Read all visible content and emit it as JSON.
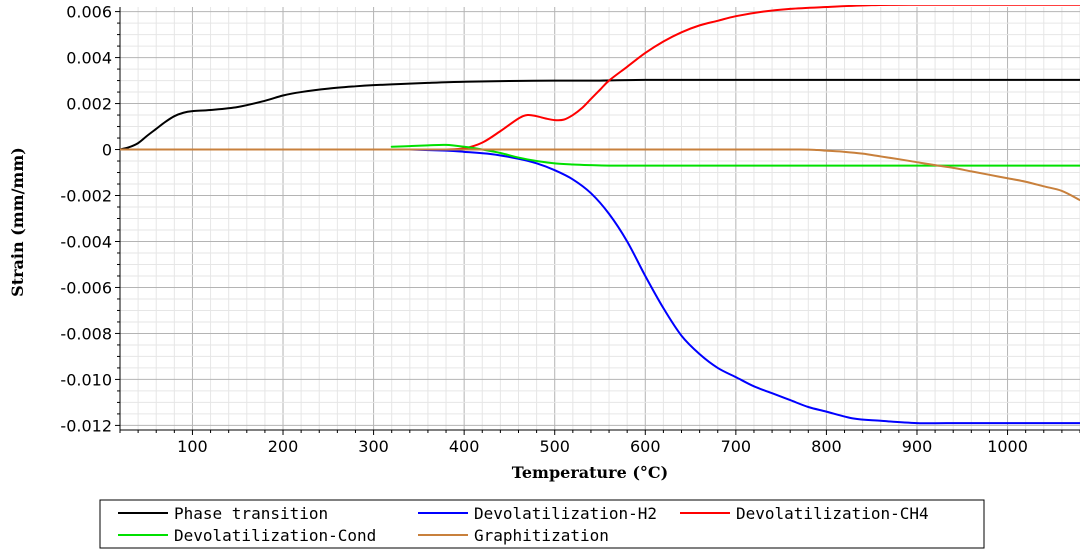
{
  "chart_data": {
    "type": "line",
    "title": "",
    "xlabel": "Temperature (°C)",
    "ylabel": "Strain (mm/mm)",
    "xlim": [
      20,
      1080
    ],
    "ylim": [
      -0.0122,
      0.0062
    ],
    "xticks": [
      100,
      200,
      300,
      400,
      500,
      600,
      700,
      800,
      900,
      1000
    ],
    "xtick_labels": [
      "100",
      "200",
      "300",
      "400",
      "500",
      "600",
      "700",
      "800",
      "900",
      "1000"
    ],
    "yticks": [
      0.006,
      0.004,
      0.002,
      0,
      -0.002,
      -0.004,
      -0.006,
      -0.008,
      -0.01,
      -0.012
    ],
    "ytick_labels": [
      "0.006",
      "0.004",
      "0.002",
      "0",
      "-0.002",
      "-0.004",
      "-0.006",
      "-0.008",
      "-0.010",
      "-0.012"
    ],
    "grid": true,
    "legend_position": "bottom",
    "series": [
      {
        "name": "Phase transition",
        "color": "#000000",
        "x": [
          20,
          30,
          40,
          50,
          60,
          70,
          80,
          90,
          100,
          120,
          150,
          180,
          200,
          220,
          250,
          280,
          300,
          330,
          360,
          400,
          450,
          500,
          550,
          600,
          700,
          800,
          900,
          1000,
          1080
        ],
        "y": [
          0.0,
          0.0001,
          0.00028,
          0.0006,
          0.0009,
          0.0012,
          0.00145,
          0.0016,
          0.00167,
          0.00172,
          0.00185,
          0.00212,
          0.00235,
          0.0025,
          0.00265,
          0.00275,
          0.0028,
          0.00285,
          0.0029,
          0.00295,
          0.00298,
          0.003,
          0.003,
          0.00303,
          0.00303,
          0.00303,
          0.00303,
          0.00303,
          0.00303
        ]
      },
      {
        "name": "Devolatilization-H2",
        "color": "#0000ff",
        "x": [
          340,
          380,
          400,
          430,
          460,
          480,
          500,
          520,
          540,
          560,
          580,
          600,
          620,
          640,
          660,
          680,
          700,
          720,
          740,
          760,
          780,
          800,
          830,
          860,
          900,
          950,
          1000,
          1080
        ],
        "y": [
          0.0,
          -5e-05,
          -0.0001,
          -0.0002,
          -0.0004,
          -0.0006,
          -0.0009,
          -0.0013,
          -0.0019,
          -0.0028,
          -0.004,
          -0.0055,
          -0.0069,
          -0.0081,
          -0.0089,
          -0.0095,
          -0.0099,
          -0.0103,
          -0.0106,
          -0.0109,
          -0.0112,
          -0.0114,
          -0.0117,
          -0.0118,
          -0.0119,
          -0.0119,
          -0.0119,
          -0.0119
        ]
      },
      {
        "name": "Devolatilization-CH4",
        "color": "#ff0000",
        "x": [
          380,
          400,
          420,
          440,
          460,
          470,
          480,
          490,
          500,
          510,
          520,
          530,
          540,
          550,
          560,
          580,
          600,
          620,
          640,
          660,
          680,
          700,
          730,
          760,
          800,
          850,
          900,
          950,
          1000,
          1080
        ],
        "y": [
          0.0,
          5e-05,
          0.0003,
          0.0008,
          0.00135,
          0.0015,
          0.00145,
          0.00135,
          0.00128,
          0.0013,
          0.0015,
          0.0018,
          0.0022,
          0.0026,
          0.003,
          0.0036,
          0.0042,
          0.0047,
          0.0051,
          0.0054,
          0.0056,
          0.0058,
          0.006,
          0.00612,
          0.0062,
          0.00628,
          0.0063,
          0.0063,
          0.0063,
          0.0063
        ]
      },
      {
        "name": "Devolatilization-Cond",
        "color": "#00e000",
        "x": [
          320,
          340,
          360,
          380,
          400,
          420,
          440,
          460,
          480,
          500,
          520,
          540,
          560,
          600,
          700,
          800,
          900,
          1000,
          1080
        ],
        "y": [
          0.00012,
          0.00015,
          0.00018,
          0.0002,
          0.00012,
          0.0,
          -0.00015,
          -0.00035,
          -0.0005,
          -0.0006,
          -0.00065,
          -0.00068,
          -0.0007,
          -0.0007,
          -0.0007,
          -0.0007,
          -0.0007,
          -0.0007,
          -0.0007
        ]
      },
      {
        "name": "Graphitization",
        "color": "#c8803c",
        "x": [
          20,
          100,
          200,
          300,
          400,
          500,
          600,
          700,
          770,
          790,
          800,
          820,
          840,
          860,
          880,
          900,
          920,
          940,
          960,
          980,
          1000,
          1020,
          1040,
          1060,
          1080
        ],
        "y": [
          0.0,
          0.0,
          0.0,
          0.0,
          0.0,
          0.0,
          0.0,
          0.0,
          0.0,
          -2e-05,
          -5e-05,
          -0.0001,
          -0.00018,
          -0.0003,
          -0.00042,
          -0.00055,
          -0.00068,
          -0.0008,
          -0.00095,
          -0.0011,
          -0.00125,
          -0.0014,
          -0.0016,
          -0.0018,
          -0.0022
        ]
      }
    ]
  }
}
